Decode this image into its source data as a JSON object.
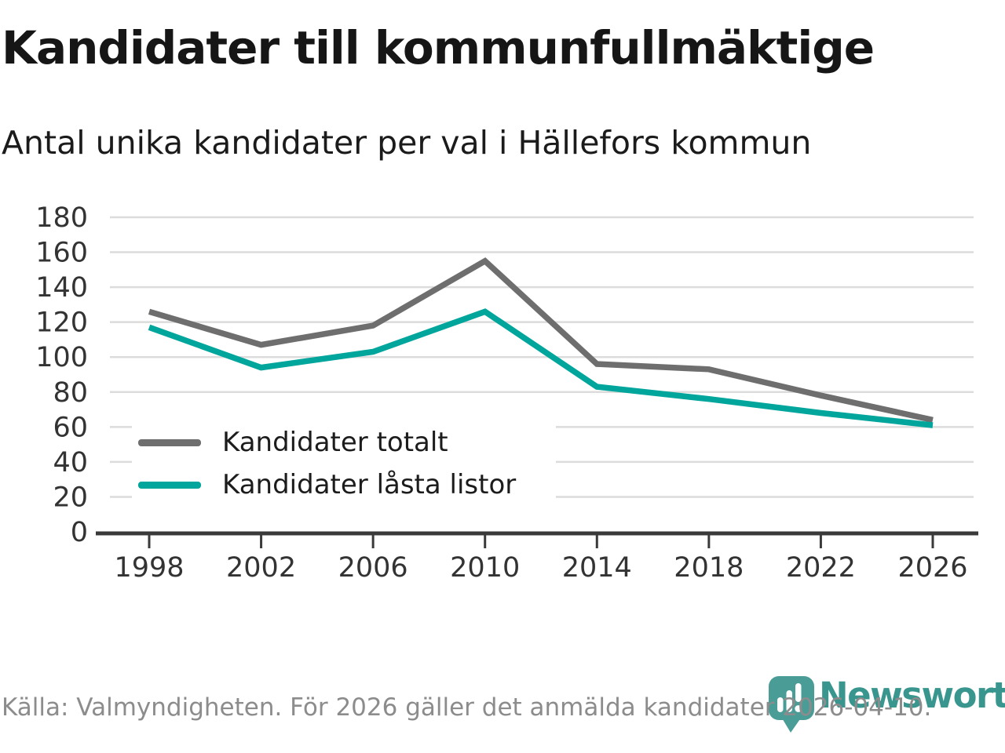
{
  "title": "Kandidater till kommunfullmäktige",
  "subtitle": "Antal unika kandidater per val i Hällefors kommun",
  "footer": {
    "source_text": "Källa: Valmyndigheten. För 2026 gäller det anmälda kandidater 2026-04-10.",
    "brand": "Newsworthy"
  },
  "colors": {
    "series_total": "#6e6e6e",
    "series_locked": "#00a59c",
    "gridline": "#dcdcdc",
    "axis": "#3a3a3a",
    "tick_label": "#333333",
    "logo_teal": "#4a9d97",
    "brand_text": "#39968f",
    "footer_text": "#8c8c8c"
  },
  "chart_data": {
    "type": "line",
    "x": [
      1998,
      2002,
      2006,
      2010,
      2014,
      2018,
      2022,
      2026
    ],
    "series": [
      {
        "name": "Kandidater totalt",
        "color": "#6e6e6e",
        "values": [
          126,
          107,
          118,
          155,
          96,
          93,
          78,
          64
        ]
      },
      {
        "name": "Kandidater låsta listor",
        "color": "#00a59c",
        "values": [
          117,
          94,
          103,
          126,
          83,
          76,
          68,
          61
        ]
      }
    ],
    "ylim": [
      0,
      180
    ],
    "yticks": [
      0,
      20,
      40,
      60,
      80,
      100,
      120,
      140,
      160,
      180
    ],
    "grid": true,
    "legend_position": "inside-bottom-left",
    "xlabel": "",
    "ylabel": ""
  }
}
